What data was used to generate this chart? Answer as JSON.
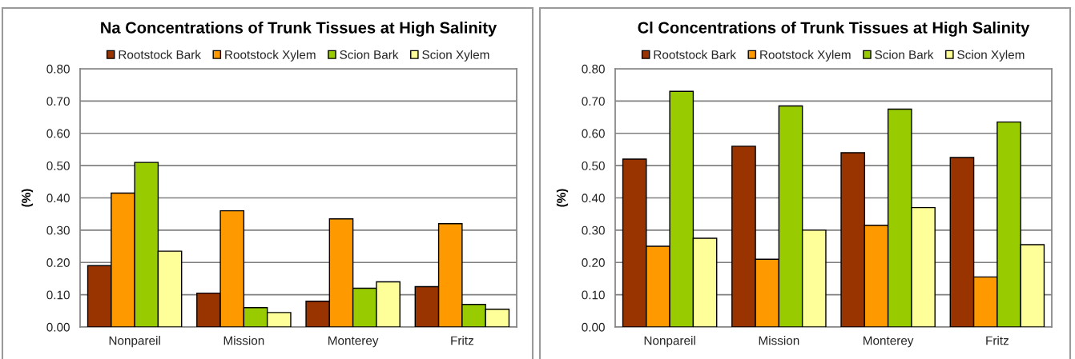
{
  "chart_data": [
    {
      "type": "bar",
      "title": "Na Concentrations of Trunk Tissues at High Salinity",
      "ylabel": "(%)",
      "categories": [
        "Nonpareil",
        "Mission",
        "Monterey",
        "Fritz"
      ],
      "series": [
        {
          "name": "Rootstock Bark",
          "color": "#993300",
          "values": [
            0.19,
            0.105,
            0.08,
            0.125
          ]
        },
        {
          "name": "Rootstock Xylem",
          "color": "#ff9900",
          "values": [
            0.415,
            0.36,
            0.335,
            0.32
          ]
        },
        {
          "name": "Scion Bark",
          "color": "#99cc00",
          "values": [
            0.51,
            0.06,
            0.12,
            0.07
          ]
        },
        {
          "name": "Scion Xylem",
          "color": "#ffff99",
          "values": [
            0.235,
            0.045,
            0.14,
            0.055
          ]
        }
      ],
      "ylim": [
        0,
        0.8
      ],
      "yticks": [
        {
          "value": 0,
          "label": "0.00"
        },
        {
          "value": 0.1,
          "label": "0.10"
        },
        {
          "value": 0.2,
          "label": "0.20"
        },
        {
          "value": 0.3,
          "label": "0.30"
        },
        {
          "value": 0.4,
          "label": "0.40"
        },
        {
          "value": 0.5,
          "label": "0.50"
        },
        {
          "value": 0.6,
          "label": "0.60"
        },
        {
          "value": 0.7,
          "label": "0.70"
        },
        {
          "value": 0.8,
          "label": "0.80"
        }
      ],
      "grid": "y",
      "legend": "top"
    },
    {
      "type": "bar",
      "title": "Cl Concentrations of Trunk Tissues at High Salinity",
      "ylabel": "(%)",
      "categories": [
        "Nonpareil",
        "Mission",
        "Monterey",
        "Fritz"
      ],
      "series": [
        {
          "name": "Rootstock Bark",
          "color": "#993300",
          "values": [
            0.52,
            0.56,
            0.54,
            0.525
          ]
        },
        {
          "name": "Rootstock Xylem",
          "color": "#ff9900",
          "values": [
            0.25,
            0.21,
            0.315,
            0.155
          ]
        },
        {
          "name": "Scion Bark",
          "color": "#99cc00",
          "values": [
            0.73,
            0.685,
            0.675,
            0.635
          ]
        },
        {
          "name": "Scion Xylem",
          "color": "#ffff99",
          "values": [
            0.275,
            0.3,
            0.37,
            0.255
          ]
        }
      ],
      "ylim": [
        0,
        0.8
      ],
      "yticks": [
        {
          "value": 0,
          "label": "0.00"
        },
        {
          "value": 0.1,
          "label": "0.10"
        },
        {
          "value": 0.2,
          "label": "0.20"
        },
        {
          "value": 0.3,
          "label": "0.30"
        },
        {
          "value": 0.4,
          "label": "0.40"
        },
        {
          "value": 0.5,
          "label": "0.50"
        },
        {
          "value": 0.6,
          "label": "0.60"
        },
        {
          "value": 0.7,
          "label": "0.70"
        },
        {
          "value": 0.8,
          "label": "0.80"
        }
      ],
      "grid": "y",
      "legend": "top"
    }
  ]
}
